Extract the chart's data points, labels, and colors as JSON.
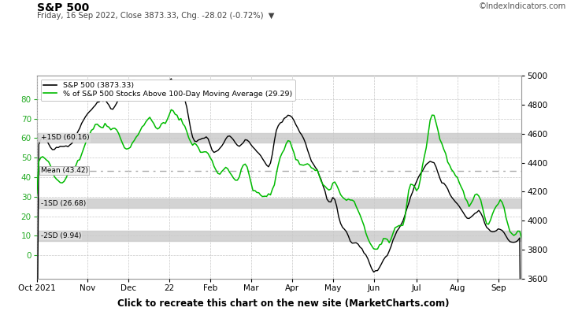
{
  "title": "S&P 500",
  "subtitle": "Friday, 16 Sep 2022, Close 3873.33, Chg. -28.02 (-0.72%)",
  "watermark": "©IndexIndicators.com",
  "legend1": "S&P 500 (3873.33)",
  "legend2": "% of S&P 500 Stocks Above 100-Day Moving Average (29.29)",
  "mean_label": "Mean (43.42)",
  "mean_val": 43.42,
  "plus1sd_label": "+1SD (60.16)",
  "plus1sd_val": 60.16,
  "minus1sd_label": "-1SD (26.68)",
  "minus1sd_val": 26.68,
  "minus2sd_label": "-2SD (9.94)",
  "minus2sd_val": 9.94,
  "sd_band_half": 2.5,
  "left_ylim": [
    -12,
    92
  ],
  "right_ylim": [
    3550,
    5100
  ],
  "left_yticks": [
    0,
    10,
    20,
    30,
    40,
    50,
    60,
    70,
    80
  ],
  "right_yticks": [
    3600,
    3800,
    4000,
    4200,
    4400,
    4600,
    4800,
    5000
  ],
  "sp500_min": 3600,
  "sp500_max": 4820,
  "pct_min": -12,
  "pct_max": 92,
  "xlabel_labels": [
    "Oct 2021",
    "Nov",
    "Dec",
    "22",
    "Feb",
    "Mar",
    "Apr",
    "May",
    "Jun",
    "Jul",
    "Aug",
    "Sep"
  ],
  "banner_text": "Click to recreate this chart on the new site (MarketCharts.com)",
  "banner_color": "#FFD700",
  "bg_color": "#FFFFFF",
  "plot_bg": "#FFFFFF",
  "grid_color": "#C8C8C8",
  "sd_band_color": "#CCCCCC",
  "mean_line_color": "#AAAAAA",
  "line1_color": "#000000",
  "line2_color": "#00BB00",
  "n_points": 250
}
